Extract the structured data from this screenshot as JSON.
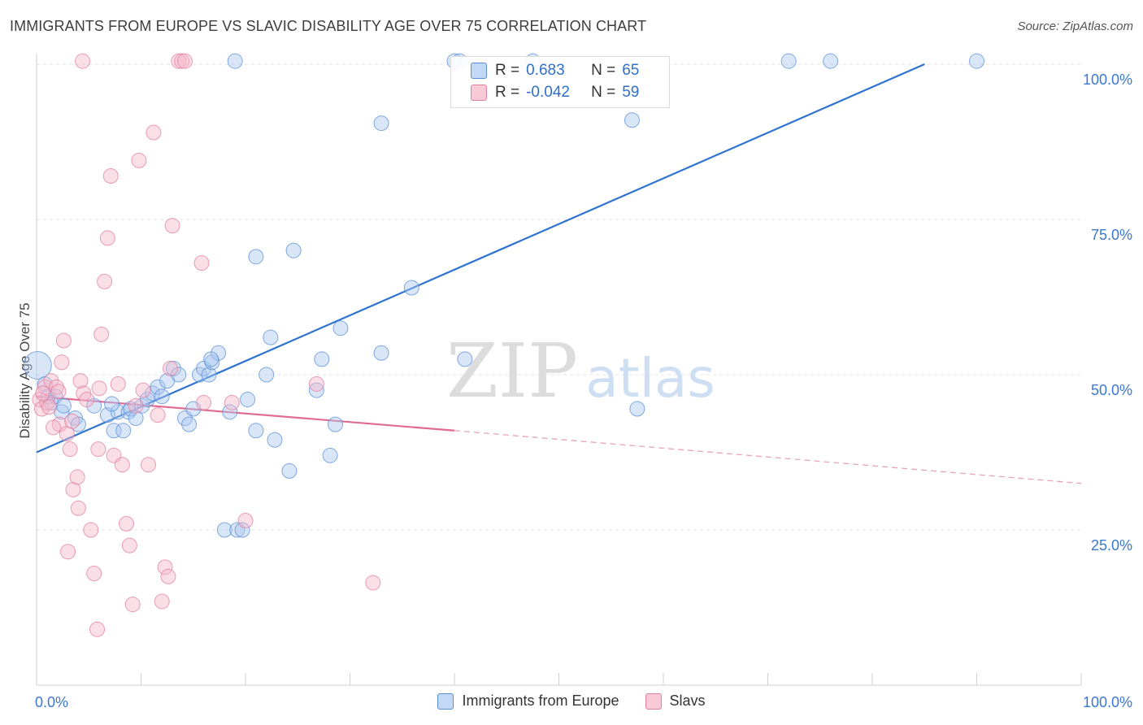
{
  "chart_data": {
    "type": "scatter",
    "title": "IMMIGRANTS FROM EUROPE VS SLAVIC DISABILITY AGE OVER 75 CORRELATION CHART",
    "source": "Source: ZipAtlas.com",
    "xlabel": "",
    "ylabel": "Disability Age Over 75",
    "xlim": [
      0,
      100
    ],
    "ylim": [
      0,
      102
    ],
    "x_tick_labels": [
      "0.0%",
      "100.0%"
    ],
    "y_ticks": [
      25,
      50,
      75,
      100
    ],
    "y_tick_labels": [
      "25.0%",
      "50.0%",
      "75.0%",
      "100.0%"
    ],
    "grid": true,
    "watermark": {
      "part1": "ZIP",
      "part2": "atlas"
    },
    "legend_top": {
      "r_label": "R =",
      "n_label": "N =",
      "rows": [
        {
          "series": "Immigrants from Europe",
          "r": "0.683",
          "n": "65"
        },
        {
          "series": "Slavs",
          "r": "-0.042",
          "n": "59"
        }
      ]
    },
    "series": [
      {
        "name": "Immigrants from Europe",
        "color": "#5b8fd6",
        "fill": "#aac8ef",
        "r": 0.683,
        "n": 65,
        "trend": {
          "x0": 0,
          "y0": 37.5,
          "x1": 85,
          "y1": 100
        },
        "points": [
          [
            0.1,
            51.5,
            18
          ],
          [
            0.8,
            48.5,
            10
          ],
          [
            1.1,
            46.5,
            10
          ],
          [
            1.4,
            45.5,
            10
          ],
          [
            1.8,
            46.5,
            10
          ],
          [
            2.4,
            44.0,
            10
          ],
          [
            2.6,
            45.0,
            10
          ],
          [
            3.7,
            43.0,
            10
          ],
          [
            4.0,
            42.0,
            10
          ],
          [
            5.5,
            45.0,
            10
          ],
          [
            6.8,
            43.5,
            10
          ],
          [
            7.4,
            41.0,
            10
          ],
          [
            7.8,
            44.0,
            10
          ],
          [
            8.3,
            41.0,
            10
          ],
          [
            8.8,
            44.0,
            10
          ],
          [
            9.0,
            44.5,
            10
          ],
          [
            9.5,
            43.0,
            10
          ],
          [
            10.1,
            45.0,
            10
          ],
          [
            10.6,
            46.0,
            10
          ],
          [
            11.1,
            47.0,
            10
          ],
          [
            11.6,
            48.0,
            10
          ],
          [
            12.0,
            46.5,
            10
          ],
          [
            12.5,
            49.0,
            10
          ],
          [
            13.1,
            51.0,
            10
          ],
          [
            13.6,
            50.0,
            10
          ],
          [
            14.2,
            43.0,
            10
          ],
          [
            14.6,
            42.0,
            10
          ],
          [
            15.0,
            44.5,
            10
          ],
          [
            15.6,
            50.0,
            10
          ],
          [
            16.0,
            51.0,
            10
          ],
          [
            16.5,
            50.0,
            10
          ],
          [
            16.8,
            52.0,
            10
          ],
          [
            17.4,
            53.5,
            10
          ],
          [
            18.5,
            44.0,
            10
          ],
          [
            18.0,
            25.0,
            10
          ],
          [
            19.2,
            25.0,
            10
          ],
          [
            19.7,
            25.0,
            10
          ],
          [
            20.2,
            46.0,
            10
          ],
          [
            21.0,
            69.0,
            10
          ],
          [
            21.0,
            41.0,
            10
          ],
          [
            22.0,
            50.0,
            10
          ],
          [
            22.4,
            56.0,
            10
          ],
          [
            22.8,
            39.5,
            10
          ],
          [
            24.2,
            34.5,
            10
          ],
          [
            24.6,
            70.0,
            10
          ],
          [
            26.8,
            47.5,
            10
          ],
          [
            27.3,
            52.5,
            10
          ],
          [
            28.1,
            37.0,
            10
          ],
          [
            28.6,
            42.0,
            10
          ],
          [
            29.1,
            57.5,
            10
          ],
          [
            33.0,
            53.5,
            10
          ],
          [
            35.9,
            64.0,
            10
          ],
          [
            41.0,
            52.5,
            10
          ],
          [
            57.0,
            91.0,
            10
          ],
          [
            57.5,
            44.5,
            10
          ],
          [
            33.0,
            90.5,
            10
          ],
          [
            19.0,
            100.5,
            10
          ],
          [
            40.0,
            100.5,
            10
          ],
          [
            40.5,
            100.5,
            10
          ],
          [
            47.5,
            100.5,
            10
          ],
          [
            72.0,
            100.5,
            10
          ],
          [
            76.0,
            100.5,
            10
          ],
          [
            90.0,
            100.5,
            10
          ],
          [
            16.7,
            52.5,
            10
          ],
          [
            7.2,
            45.3,
            10
          ]
        ]
      },
      {
        "name": "Slavs",
        "color": "#e27f9f",
        "fill": "#f5b8ca",
        "r": -0.042,
        "n": 59,
        "trend_solid": {
          "x0": 0,
          "y0": 46.5,
          "x1": 40,
          "y1": 41.0
        },
        "trend_dashed": {
          "x0": 40,
          "y0": 41.0,
          "x1": 100,
          "y1": 32.5
        },
        "points": [
          [
            0.3,
            46.0,
            10
          ],
          [
            0.5,
            44.5,
            10
          ],
          [
            0.8,
            48.0,
            10
          ],
          [
            1.0,
            45.5,
            10
          ],
          [
            1.4,
            49.0,
            10
          ],
          [
            1.9,
            48.0,
            10
          ],
          [
            2.2,
            42.0,
            10
          ],
          [
            2.4,
            52.0,
            10
          ],
          [
            2.6,
            55.5,
            10
          ],
          [
            2.9,
            40.5,
            10
          ],
          [
            3.2,
            38.0,
            10
          ],
          [
            3.5,
            31.5,
            10
          ],
          [
            3.9,
            33.5,
            10
          ],
          [
            4.2,
            49.0,
            10
          ],
          [
            4.5,
            47.0,
            10
          ],
          [
            4.8,
            46.0,
            10
          ],
          [
            5.2,
            25.0,
            10
          ],
          [
            5.5,
            18.0,
            10
          ],
          [
            5.9,
            38.0,
            10
          ],
          [
            6.2,
            56.5,
            10
          ],
          [
            6.5,
            65.0,
            10
          ],
          [
            6.8,
            72.0,
            10
          ],
          [
            7.1,
            82.0,
            10
          ],
          [
            7.4,
            37.0,
            10
          ],
          [
            7.8,
            48.5,
            10
          ],
          [
            8.2,
            35.5,
            10
          ],
          [
            8.6,
            26.0,
            10
          ],
          [
            8.9,
            22.5,
            10
          ],
          [
            9.2,
            13.0,
            10
          ],
          [
            9.8,
            84.5,
            10
          ],
          [
            10.2,
            47.5,
            10
          ],
          [
            10.7,
            35.5,
            10
          ],
          [
            11.2,
            89.0,
            10
          ],
          [
            11.6,
            43.5,
            10
          ],
          [
            12.3,
            19.0,
            10
          ],
          [
            12.6,
            17.5,
            10
          ],
          [
            13.0,
            74.0,
            10
          ],
          [
            13.6,
            100.5,
            10
          ],
          [
            13.9,
            100.5,
            10
          ],
          [
            4.4,
            100.5,
            10
          ],
          [
            12.8,
            51.0,
            10
          ],
          [
            12.0,
            13.5,
            10
          ],
          [
            15.8,
            68.0,
            10
          ],
          [
            16.0,
            45.5,
            10
          ],
          [
            18.7,
            45.5,
            10
          ],
          [
            20.0,
            26.5,
            10
          ],
          [
            26.8,
            48.5,
            10
          ],
          [
            32.2,
            16.5,
            10
          ],
          [
            5.8,
            9.0,
            10
          ],
          [
            3.0,
            21.5,
            10
          ],
          [
            1.6,
            41.5,
            10
          ],
          [
            1.2,
            44.8,
            10
          ],
          [
            2.1,
            47.3,
            10
          ],
          [
            6.0,
            47.8,
            10
          ],
          [
            0.6,
            47.0,
            10
          ],
          [
            3.4,
            42.5,
            10
          ],
          [
            4.0,
            28.5,
            10
          ],
          [
            9.5,
            45.0,
            10
          ],
          [
            14.2,
            100.5,
            10
          ]
        ]
      }
    ],
    "legend_bottom": [
      "Immigrants from Europe",
      "Slavs"
    ]
  }
}
